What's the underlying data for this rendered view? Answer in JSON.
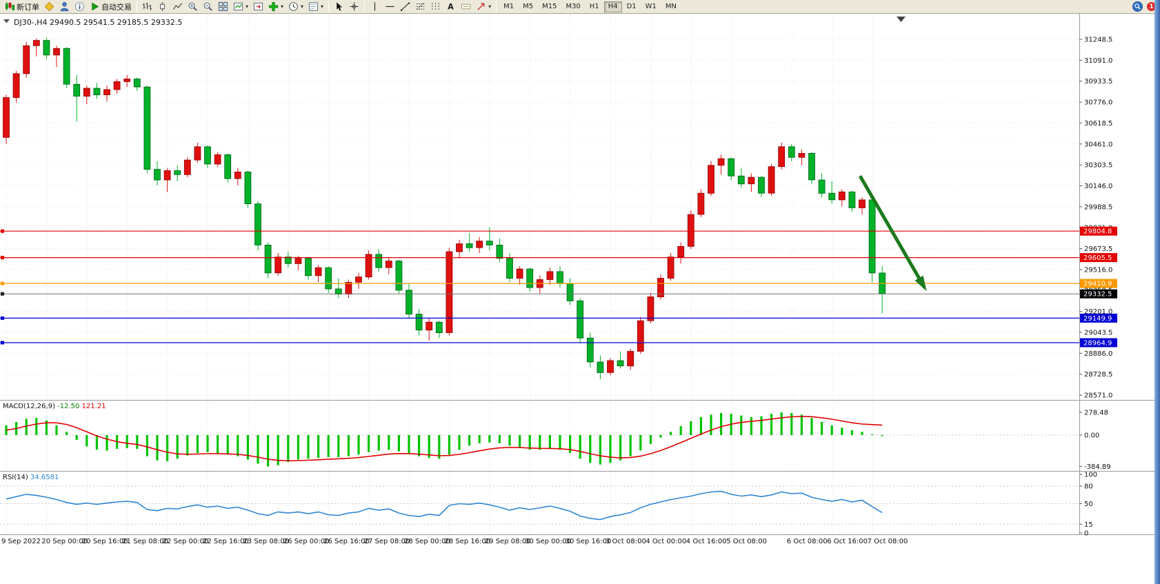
{
  "toolbar": {
    "items": [
      {
        "name": "new-order-button",
        "icon": "order-candles",
        "label": "新订单"
      },
      {
        "name": "metaeditor-button",
        "icon": "diamond"
      },
      {
        "name": "market-watch-button",
        "icon": "person"
      },
      {
        "name": "info-button",
        "icon": "info"
      },
      {
        "name": "autotrading-button",
        "icon": "play",
        "label": "自动交易"
      },
      {
        "type": "sep"
      },
      {
        "name": "bar-chart-button",
        "icon": "bars"
      },
      {
        "name": "candle-chart-button",
        "icon": "candle"
      },
      {
        "name": "line-chart-button",
        "icon": "polyline"
      },
      {
        "name": "zoom-in-button",
        "icon": "zoom-in"
      },
      {
        "name": "zoom-out-button",
        "icon": "zoom-out"
      },
      {
        "name": "tile-windows-button",
        "icon": "tile"
      },
      {
        "name": "auto-scroll-button",
        "icon": "chart-scroll",
        "dropdown": true
      },
      {
        "name": "chart-shift-button",
        "icon": "chart-shift"
      },
      {
        "name": "indicators-button",
        "icon": "plus-green",
        "dropdown": true
      },
      {
        "name": "periods-button",
        "icon": "clock",
        "dropdown": true
      },
      {
        "name": "templates-button",
        "icon": "template",
        "dropdown": true
      },
      {
        "type": "sep"
      },
      {
        "name": "cursor-button",
        "icon": "cursor"
      },
      {
        "name": "crosshair-button",
        "icon": "crosshair"
      },
      {
        "type": "sep"
      },
      {
        "name": "vertical-line-button",
        "icon": "vline"
      },
      {
        "name": "horizontal-line-button",
        "icon": "hline"
      },
      {
        "name": "trendline-button",
        "icon": "trendline"
      },
      {
        "name": "fibonacci-button",
        "icon": "fibo"
      },
      {
        "name": "cycle-lines-button",
        "icon": "cycles"
      },
      {
        "name": "text-button",
        "icon": "textA"
      },
      {
        "name": "text-label-button",
        "icon": "tag"
      },
      {
        "name": "arrows-button",
        "icon": "arrow-obj",
        "dropdown": true
      },
      {
        "type": "sep"
      },
      {
        "type": "timeframes"
      },
      {
        "type": "spacer"
      },
      {
        "name": "search-button",
        "icon": "search"
      },
      {
        "name": "notification-badge",
        "badge": "1"
      }
    ],
    "timeframes": [
      {
        "label": "M1"
      },
      {
        "label": "M5"
      },
      {
        "label": "M15"
      },
      {
        "label": "M30"
      },
      {
        "label": "H1"
      },
      {
        "label": "H4",
        "active": true
      },
      {
        "label": "D1"
      },
      {
        "label": "W1"
      },
      {
        "label": "MN"
      }
    ]
  },
  "chart_data": {
    "type": "candlestick",
    "symbol": "DJ30-,H4",
    "ohlc_header": "29490.5 29541.5 29185.5 29332.5",
    "price_axis": {
      "ticks": [
        31248.5,
        31091.0,
        30933.5,
        30776.0,
        30618.5,
        30461.0,
        30303.5,
        30146.0,
        29988.5,
        29831.0,
        29673.5,
        29516.0,
        29358.5,
        29201.0,
        29043.5,
        28886.0,
        28728.5,
        28571.0
      ]
    },
    "x_labels": [
      {
        "bar": 0,
        "label": "9 Sep 2022"
      },
      {
        "bar": 4,
        "label": "20 Sep 00:00"
      },
      {
        "bar": 8,
        "label": "20 Sep 16:00"
      },
      {
        "bar": 12,
        "label": "21 Sep 08:00"
      },
      {
        "bar": 16,
        "label": "22 Sep 00:00"
      },
      {
        "bar": 20,
        "label": "22 Sep 16:00"
      },
      {
        "bar": 24,
        "label": "23 Sep 08:00"
      },
      {
        "bar": 28,
        "label": "26 Sep 00:00"
      },
      {
        "bar": 32,
        "label": "26 Sep 16:00"
      },
      {
        "bar": 36,
        "label": "27 Sep 08:00"
      },
      {
        "bar": 40,
        "label": "28 Sep 00:00"
      },
      {
        "bar": 44,
        "label": "28 Sep 16:00"
      },
      {
        "bar": 48,
        "label": "29 Sep 08:00"
      },
      {
        "bar": 52,
        "label": "30 Sep 00:00"
      },
      {
        "bar": 56,
        "label": "30 Sep 16:00"
      },
      {
        "bar": 60,
        "label": "3 Oct 08:00"
      },
      {
        "bar": 64,
        "label": "4 Oct 00:00"
      },
      {
        "bar": 68,
        "label": "4 Oct 16:00"
      },
      {
        "bar": 72,
        "label": "5 Oct 08:00"
      },
      {
        "bar": 78,
        "label": "6 Oct 08:00"
      },
      {
        "bar": 82,
        "label": "6 Oct 16:00"
      },
      {
        "bar": 86,
        "label": "7 Oct 08:00"
      }
    ],
    "colors": {
      "up": "#e01010",
      "up_border": "#8f0000",
      "down": "#00b22a",
      "down_border": "#006018"
    },
    "candles": [
      [
        30510,
        30830,
        30460,
        30810
      ],
      [
        30810,
        31010,
        30770,
        30990
      ],
      [
        30990,
        31230,
        30960,
        31200
      ],
      [
        31200,
        31255,
        31120,
        31240
      ],
      [
        31240,
        31262,
        31100,
        31130
      ],
      [
        31130,
        31200,
        31040,
        31180
      ],
      [
        31180,
        31190,
        30880,
        30910
      ],
      [
        30910,
        30980,
        30630,
        30820
      ],
      [
        30820,
        30900,
        30760,
        30880
      ],
      [
        30880,
        30920,
        30800,
        30830
      ],
      [
        30830,
        30900,
        30780,
        30870
      ],
      [
        30870,
        30950,
        30840,
        30930
      ],
      [
        30930,
        30980,
        30890,
        30950
      ],
      [
        30950,
        30960,
        30860,
        30890
      ],
      [
        30890,
        30900,
        30240,
        30270
      ],
      [
        30270,
        30330,
        30150,
        30190
      ],
      [
        30190,
        30280,
        30100,
        30260
      ],
      [
        30260,
        30300,
        30180,
        30230
      ],
      [
        30230,
        30360,
        30210,
        30340
      ],
      [
        30340,
        30470,
        30320,
        30440
      ],
      [
        30440,
        30450,
        30280,
        30310
      ],
      [
        30310,
        30400,
        30290,
        30380
      ],
      [
        30380,
        30390,
        30170,
        30200
      ],
      [
        30200,
        30280,
        30150,
        30250
      ],
      [
        30250,
        30260,
        29980,
        30010
      ],
      [
        30010,
        30030,
        29660,
        29700
      ],
      [
        29700,
        29720,
        29450,
        29490
      ],
      [
        29490,
        29640,
        29470,
        29610
      ],
      [
        29610,
        29650,
        29530,
        29560
      ],
      [
        29560,
        29620,
        29510,
        29600
      ],
      [
        29600,
        29610,
        29440,
        29470
      ],
      [
        29470,
        29550,
        29420,
        29530
      ],
      [
        29530,
        29540,
        29340,
        29370
      ],
      [
        29370,
        29450,
        29300,
        29330
      ],
      [
        29330,
        29440,
        29300,
        29420
      ],
      [
        29420,
        29490,
        29370,
        29460
      ],
      [
        29460,
        29660,
        29440,
        29630
      ],
      [
        29630,
        29670,
        29500,
        29530
      ],
      [
        29530,
        29610,
        29480,
        29580
      ],
      [
        29580,
        29590,
        29330,
        29360
      ],
      [
        29360,
        29410,
        29150,
        29180
      ],
      [
        29180,
        29220,
        29020,
        29060
      ],
      [
        29060,
        29150,
        28980,
        29120
      ],
      [
        29120,
        29130,
        29000,
        29040
      ],
      [
        29040,
        29680,
        29020,
        29650
      ],
      [
        29650,
        29740,
        29600,
        29710
      ],
      [
        29710,
        29790,
        29650,
        29680
      ],
      [
        29680,
        29760,
        29640,
        29730
      ],
      [
        29730,
        29835,
        29660,
        29700
      ],
      [
        29700,
        29750,
        29570,
        29600
      ],
      [
        29600,
        29640,
        29420,
        29450
      ],
      [
        29450,
        29540,
        29400,
        29520
      ],
      [
        29520,
        29530,
        29350,
        29380
      ],
      [
        29380,
        29470,
        29330,
        29440
      ],
      [
        29440,
        29530,
        29400,
        29500
      ],
      [
        29500,
        29540,
        29380,
        29410
      ],
      [
        29410,
        29450,
        29250,
        29280
      ],
      [
        29280,
        29300,
        28960,
        29000
      ],
      [
        29000,
        29040,
        28780,
        28820
      ],
      [
        28820,
        28870,
        28690,
        28740
      ],
      [
        28740,
        28850,
        28720,
        28830
      ],
      [
        28830,
        28900,
        28770,
        28790
      ],
      [
        28790,
        28920,
        28760,
        28900
      ],
      [
        28900,
        29160,
        28880,
        29130
      ],
      [
        29130,
        29340,
        29110,
        29310
      ],
      [
        29310,
        29480,
        29290,
        29450
      ],
      [
        29450,
        29640,
        29430,
        29610
      ],
      [
        29610,
        29720,
        29560,
        29690
      ],
      [
        29690,
        29960,
        29670,
        29930
      ],
      [
        29930,
        30120,
        29910,
        30090
      ],
      [
        30090,
        30330,
        30070,
        30300
      ],
      [
        30300,
        30380,
        30230,
        30350
      ],
      [
        30350,
        30360,
        30190,
        30220
      ],
      [
        30220,
        30280,
        30130,
        30160
      ],
      [
        30160,
        30240,
        30100,
        30210
      ],
      [
        30210,
        30220,
        30060,
        30090
      ],
      [
        30090,
        30310,
        30070,
        30290
      ],
      [
        30290,
        30470,
        30270,
        30440
      ],
      [
        30440,
        30460,
        30330,
        30360
      ],
      [
        30360,
        30420,
        30300,
        30390
      ],
      [
        30390,
        30400,
        30160,
        30190
      ],
      [
        30190,
        30240,
        30060,
        30090
      ],
      [
        30090,
        30180,
        30010,
        30040
      ],
      [
        30040,
        30120,
        29990,
        30100
      ],
      [
        30100,
        30110,
        29950,
        29980
      ],
      [
        29980,
        30060,
        29930,
        30040
      ],
      [
        30040,
        30060,
        29420,
        29490
      ],
      [
        29490,
        29541.5,
        29185.5,
        29332.5
      ]
    ],
    "lines": [
      {
        "price": 29804.8,
        "label": "29804.8",
        "color": "#e40000"
      },
      {
        "price": 29605.5,
        "label": "29605.5",
        "color": "#e40000"
      },
      {
        "price": 29410.9,
        "label": "29410.9",
        "color": "#ff9900"
      },
      {
        "price": 29149.9,
        "label": "29149.9",
        "color": "#0000d4"
      },
      {
        "price": 28964.9,
        "label": "28964.9",
        "color": "#0000d4"
      }
    ],
    "bid": {
      "price": 29332.5,
      "label": "29332.5",
      "color": "#000000",
      "line_color": "#707070"
    },
    "arrow": {
      "from_bar": 84.8,
      "from_price": 30220,
      "to_bar": 91.2,
      "to_price": 29380,
      "color": "#1c7a1c"
    },
    "indicators": [
      {
        "type": "macd",
        "name": "MACD(12,26,9)",
        "values_text": [
          "-12.50",
          "121.21"
        ],
        "axis_labels": [
          "278.48",
          "0.00",
          "-384.89"
        ],
        "axis_values": [
          278.48,
          0,
          -384.89
        ],
        "colors": {
          "histogram": "#00c400",
          "signal": "#e00000"
        },
        "histogram": [
          120,
          160,
          200,
          210,
          180,
          120,
          40,
          -60,
          -140,
          -180,
          -190,
          -170,
          -160,
          -170,
          -260,
          -310,
          -320,
          -290,
          -250,
          -220,
          -210,
          -220,
          -240,
          -260,
          -300,
          -350,
          -384,
          -370,
          -330,
          -300,
          -290,
          -280,
          -270,
          -270,
          -260,
          -240,
          -210,
          -190,
          -180,
          -200,
          -230,
          -260,
          -280,
          -290,
          -240,
          -180,
          -130,
          -100,
          -90,
          -100,
          -130,
          -160,
          -180,
          -180,
          -170,
          -180,
          -220,
          -290,
          -340,
          -360,
          -340,
          -310,
          -260,
          -190,
          -110,
          -30,
          40,
          110,
          170,
          220,
          250,
          270,
          260,
          240,
          220,
          230,
          260,
          278,
          270,
          250,
          210,
          160,
          120,
          90,
          60,
          40,
          10,
          -12.5
        ],
        "signal": [
          60,
          80,
          110,
          135,
          150,
          150,
          130,
          90,
          40,
          -10,
          -50,
          -80,
          -100,
          -115,
          -145,
          -180,
          -210,
          -230,
          -235,
          -232,
          -228,
          -227,
          -230,
          -236,
          -250,
          -270,
          -295,
          -310,
          -315,
          -312,
          -308,
          -302,
          -296,
          -290,
          -284,
          -275,
          -262,
          -247,
          -233,
          -226,
          -227,
          -234,
          -243,
          -253,
          -250,
          -236,
          -215,
          -192,
          -171,
          -157,
          -152,
          -153,
          -159,
          -163,
          -164,
          -167,
          -178,
          -200,
          -228,
          -254,
          -271,
          -279,
          -275,
          -258,
          -228,
          -189,
          -143,
          -92,
          -40,
          12,
          60,
          102,
          133,
          155,
          168,
          180,
          196,
          212,
          224,
          229,
          225,
          212,
          194,
          173,
          150,
          135,
          128,
          121.21
        ]
      },
      {
        "type": "rsi",
        "name": "RSI(14)",
        "value_text": "34.6581",
        "axis_labels": [
          "100",
          "80",
          "50",
          "15",
          "0"
        ],
        "axis_values": [
          100,
          80,
          50,
          15,
          0
        ],
        "levels": [
          80,
          50,
          15
        ],
        "color": "#2f86d5",
        "values": [
          58,
          62,
          66,
          64,
          61,
          57,
          52,
          49,
          51,
          49,
          51,
          53,
          54,
          52,
          40,
          38,
          42,
          41,
          45,
          48,
          44,
          46,
          42,
          44,
          39,
          33,
          30,
          36,
          34,
          36,
          33,
          36,
          31,
          30,
          34,
          36,
          42,
          39,
          41,
          34,
          30,
          28,
          32,
          30,
          47,
          50,
          49,
          51,
          48,
          44,
          39,
          43,
          40,
          43,
          46,
          42,
          37,
          29,
          25,
          23,
          28,
          31,
          35,
          43,
          49,
          53,
          57,
          60,
          63,
          67,
          70,
          71,
          66,
          63,
          65,
          62,
          65,
          70,
          67,
          68,
          61,
          57,
          54,
          57,
          53,
          56,
          45,
          34.66
        ]
      }
    ]
  }
}
